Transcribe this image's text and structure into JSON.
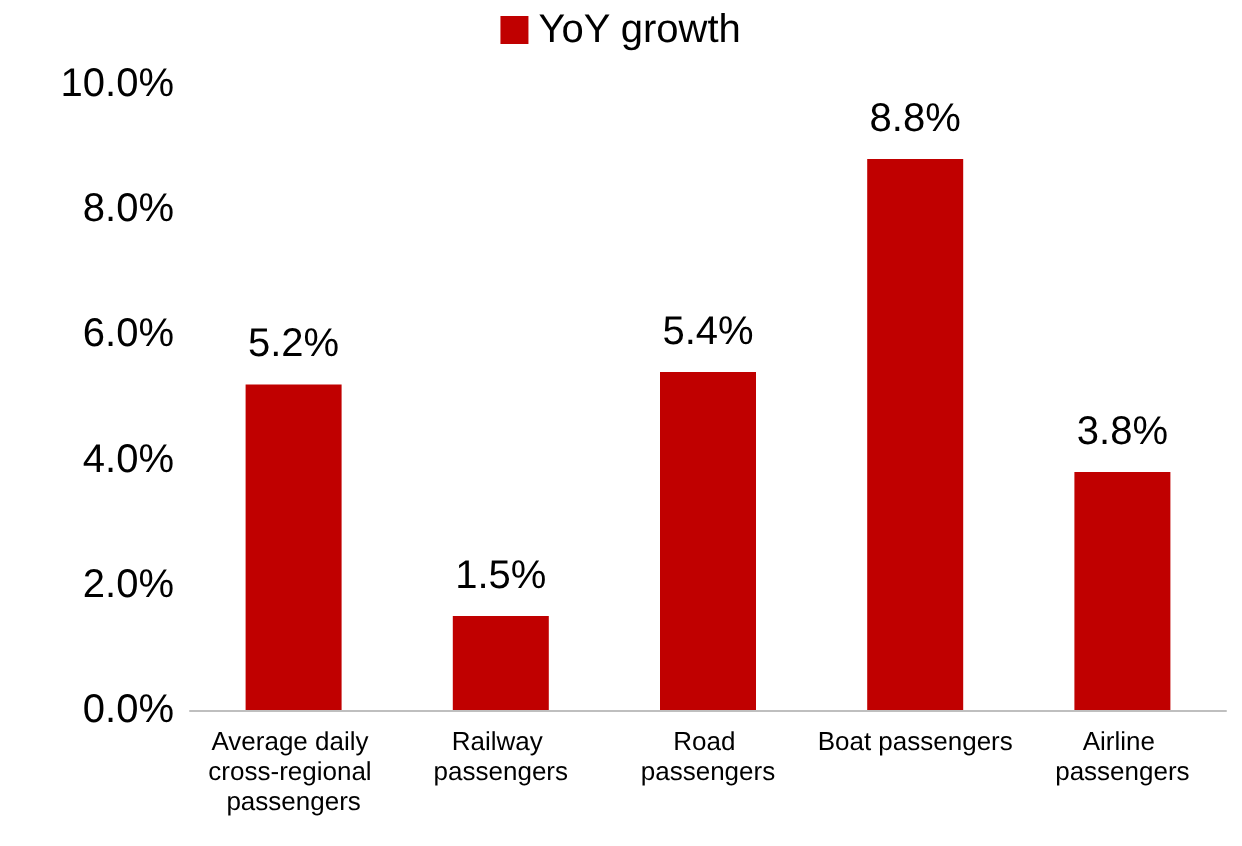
{
  "chart_data": {
    "type": "bar",
    "categories": [
      "Average daily cross-regional passengers",
      "Railway passengers",
      "Road passengers",
      "Boat passengers",
      "Airline passengers"
    ],
    "series": [
      {
        "name": "YoY growth",
        "color": "#c00000",
        "values": [
          5.2,
          1.5,
          5.4,
          8.8,
          3.8
        ],
        "value_labels": [
          "5.2%",
          "1.5%",
          "5.4%",
          "8.8%",
          "3.8%"
        ]
      }
    ],
    "ylim": [
      0,
      10
    ],
    "yticks": [
      {
        "value": 0,
        "label": "0.0%"
      },
      {
        "value": 2,
        "label": "2.0%"
      },
      {
        "value": 4,
        "label": "4.0%"
      },
      {
        "value": 6,
        "label": "6.0%"
      },
      {
        "value": 8,
        "label": "8.0%"
      },
      {
        "value": 10,
        "label": "10.0%"
      }
    ],
    "grid": false,
    "legend": "top"
  }
}
